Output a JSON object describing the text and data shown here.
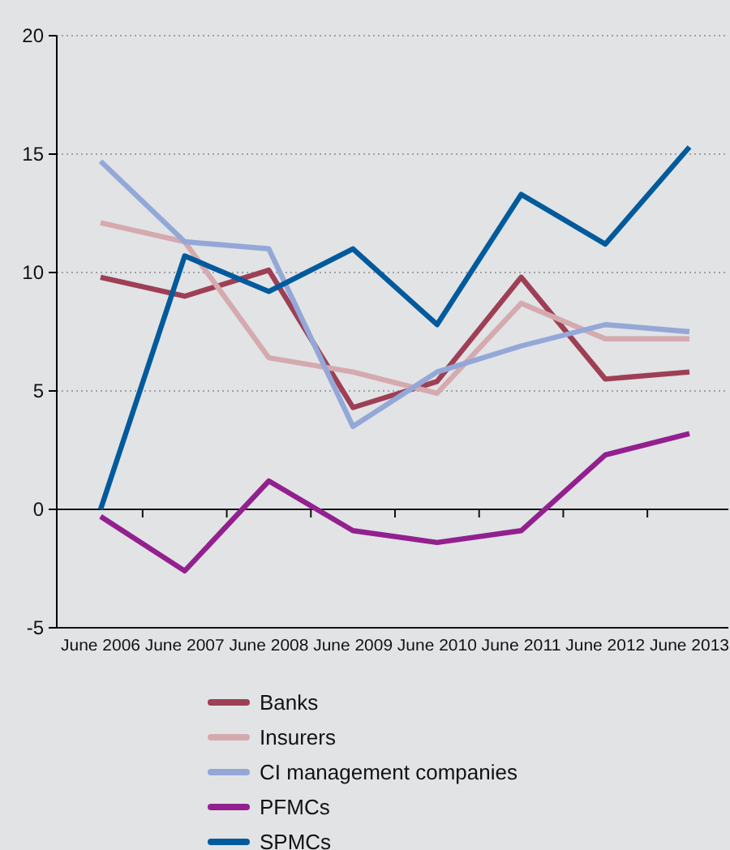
{
  "chart_data": {
    "type": "line",
    "categories": [
      "June 2006",
      "June 2007",
      "June 2008",
      "June 2009",
      "June 2010",
      "June 2011",
      "June 2012",
      "June 2013"
    ],
    "series": [
      {
        "name": "Banks",
        "color": "#9e3f55",
        "values": [
          9.8,
          9.0,
          10.1,
          4.3,
          5.4,
          9.8,
          5.5,
          5.8
        ]
      },
      {
        "name": "Insurers",
        "color": "#d5aaaf",
        "values": [
          12.1,
          11.3,
          6.4,
          5.8,
          4.9,
          8.7,
          7.2,
          7.2
        ]
      },
      {
        "name": "CI management companies",
        "color": "#94a8d8",
        "values": [
          14.7,
          11.3,
          11.0,
          3.5,
          5.8,
          6.9,
          7.8,
          7.5
        ]
      },
      {
        "name": "PFMCs",
        "color": "#93208f",
        "values": [
          -0.3,
          -2.6,
          1.2,
          -0.9,
          -1.4,
          -0.9,
          2.3,
          3.2
        ]
      },
      {
        "name": "SPMCs",
        "color": "#005a9c",
        "values": [
          0,
          10.7,
          9.2,
          11.0,
          7.8,
          13.3,
          11.2,
          15.3
        ]
      }
    ],
    "ylim": [
      -5,
      20
    ],
    "yticks": [
      -5,
      0,
      5,
      10,
      15,
      20
    ],
    "grid": "y",
    "legend": "bottom",
    "marker": "none",
    "line_style": "solid"
  }
}
